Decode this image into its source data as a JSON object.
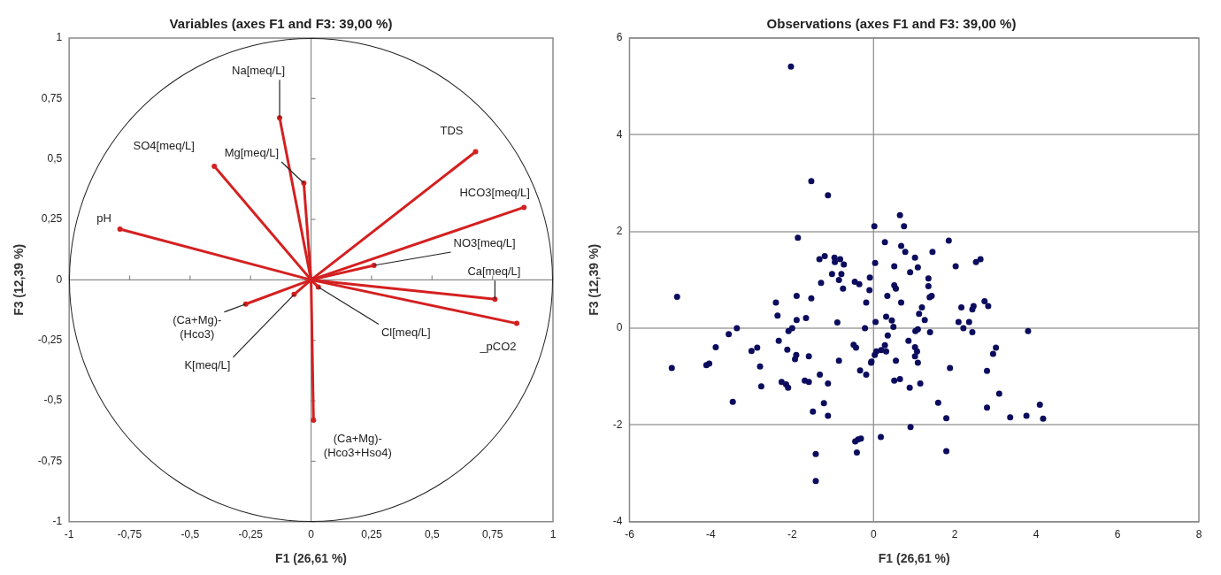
{
  "chart_data": [
    {
      "type": "line",
      "title": "Variables (axes F1 and F3: 39,00 %)",
      "xlabel": "F1 (26,61 %)",
      "ylabel": "F3 (12,39 %)",
      "marker": "circle",
      "xlim": [
        -1,
        1
      ],
      "ylim": [
        -1,
        1
      ],
      "xticks": [
        -1,
        {
          "value": -0.75,
          "label": "-0,75"
        },
        {
          "value": -0.5,
          "label": "-0,5"
        },
        {
          "value": -0.25,
          "label": "-0,25"
        },
        0,
        {
          "value": 0.25,
          "label": "0,25"
        },
        {
          "value": 0.5,
          "label": "0,5"
        },
        {
          "value": 0.75,
          "label": "0,75"
        },
        1
      ],
      "yticks": [
        -1,
        {
          "value": -0.75,
          "label": "-0,75"
        },
        {
          "value": -0.5,
          "label": "-0,5"
        },
        {
          "value": -0.25,
          "label": "-0,25"
        },
        0,
        {
          "value": 0.25,
          "label": "0,25"
        },
        {
          "value": 0.5,
          "label": "0,5"
        },
        {
          "value": 0.75,
          "label": "0,75"
        },
        1
      ],
      "ref_lines": [
        {
          "axis": "x",
          "value": 0
        },
        {
          "axis": "y",
          "value": 0
        }
      ],
      "series": [
        {
          "name": "pH",
          "type": "line",
          "color": "#d42020",
          "x": [
            0,
            -0.79
          ],
          "values": [
            0,
            0.21
          ]
        },
        {
          "name": "SO4[meq/L]",
          "type": "line",
          "color": "#d42020",
          "x": [
            0,
            -0.4
          ],
          "values": [
            0,
            0.47
          ]
        },
        {
          "name": "Na[meq/L]",
          "type": "line",
          "color": "#d42020",
          "x": [
            0,
            -0.13
          ],
          "values": [
            0,
            0.67
          ]
        },
        {
          "name": "Mg[meq/L]",
          "type": "line",
          "color": "#d42020",
          "x": [
            0,
            -0.03
          ],
          "values": [
            0,
            0.4
          ]
        },
        {
          "name": "TDS",
          "type": "line",
          "color": "#d42020",
          "x": [
            0,
            0.68
          ],
          "values": [
            0,
            0.53
          ]
        },
        {
          "name": "HCO3[meq/L]",
          "type": "line",
          "color": "#d42020",
          "x": [
            0,
            0.88
          ],
          "values": [
            0,
            0.3
          ]
        },
        {
          "name": "NO3[meq/L]",
          "type": "line",
          "color": "#d42020",
          "x": [
            0,
            0.26
          ],
          "values": [
            0,
            0.06
          ]
        },
        {
          "name": "Ca[meq/L]",
          "type": "line",
          "color": "#d42020",
          "x": [
            0,
            0.76
          ],
          "values": [
            0,
            -0.08
          ]
        },
        {
          "name": "_pCO2",
          "type": "line",
          "color": "#d42020",
          "x": [
            0,
            0.85
          ],
          "values": [
            0,
            -0.18
          ]
        },
        {
          "name": "Cl[meq/L]",
          "color": "#d42020",
          "x": [
            0,
            0.03
          ],
          "values": [
            0,
            -0.03
          ]
        },
        {
          "name": "(Ca+Mg)-(Hco3)",
          "type": "line",
          "color": "#d42020",
          "x": [
            0,
            -0.27
          ],
          "values": [
            0,
            -0.1
          ]
        },
        {
          "name": "K[meq/L]",
          "type": "line",
          "color": "#d42020",
          "x": [
            0,
            -0.07
          ],
          "values": [
            0,
            -0.06
          ]
        },
        {
          "name": "(Ca+Mg)-(Hco3+Hso4)",
          "type": "line",
          "color": "#d42020",
          "x": [
            0,
            0.01
          ],
          "values": [
            0,
            -0.58
          ]
        }
      ]
    },
    {
      "type": "scatter",
      "title": "Observations (axes F1 and F3: 39,00 %)",
      "xlabel": "F1 (26,61 %)",
      "ylabel": "F3 (12,39 %)",
      "marker": "circle",
      "color": "#0c0c5e",
      "grid": "y",
      "xlim": [
        -6,
        8
      ],
      "ylim": [
        -4,
        6
      ],
      "xticks": [
        -6,
        -4,
        -2,
        0,
        2,
        4,
        6,
        8
      ],
      "yticks": [
        -4,
        -2,
        0,
        2,
        4,
        6
      ],
      "ref_lines": [
        {
          "axis": "x",
          "value": 0
        }
      ],
      "x": [
        -2.03,
        -1.53,
        -1.12,
        -1.86,
        0.02,
        0.65,
        0.75,
        0.28,
        0.68,
        0.78,
        -1.33,
        -1.2,
        -0.96,
        -0.95,
        -0.82,
        -0.73,
        -1.02,
        -0.79,
        -0.85,
        -1.29,
        -0.46,
        -0.35,
        -0.75,
        0.04,
        -0.09,
        -0.1,
        0.51,
        0.9,
        0.51,
        0.55,
        0.34,
        0.68,
        -4.83,
        -2.4,
        -1.89,
        -1.53,
        -0.18,
        1.85,
        1.45,
        1.02,
        1.09,
        2.02,
        2.63,
        2.52,
        1.35,
        1.35,
        1.43,
        1.38,
        1.19,
        2.16,
        2.46,
        2.73,
        2.82,
        1.12,
        1.26,
        0.31,
        0.45,
        0.49,
        0.05,
        -0.21,
        0.35,
        0.28,
        0.19,
        0.31,
        0.07,
        0.03,
        -0.05,
        0.55,
        -0.33,
        -0.18,
        0.51,
        0.65,
        0.89,
        1.15,
        0.86,
        1.02,
        1.07,
        1.02,
        1.09,
        1.03,
        1.09,
        1.39,
        2.09,
        2.21,
        2.35,
        2.43,
        2.43,
        3.8,
        3.01,
        2.94,
        2.79,
        1.88,
        3.09,
        2.79,
        1.59,
        1.79,
        3.36,
        3.76,
        4.09,
        4.17,
        0.91,
        0.18,
        1.79,
        -2.36,
        -1.89,
        -1.66,
        -0.89,
        -2.09,
        -2,
        -3.36,
        -3.56,
        -3.88,
        -3,
        -2.86,
        -2.33,
        -2.12,
        -1.9,
        -1.93,
        -1.59,
        -0.85,
        -0.49,
        -0.43,
        -0.06,
        -4.96,
        -4.11,
        -4.04,
        -2.79,
        -2.76,
        -3.46,
        -2.26,
        -2.15,
        -2.1,
        -1.69,
        -1.59,
        -1.32,
        -1.12,
        -1.22,
        -1.49,
        -1.12,
        -0.45,
        -0.38,
        -0.31,
        -0.41,
        -1.42,
        -1.42
      ],
      "values": [
        5.41,
        3.04,
        2.75,
        1.87,
        2.11,
        2.34,
        2.11,
        1.78,
        1.7,
        1.58,
        1.43,
        1.49,
        1.46,
        1.37,
        1.43,
        1.32,
        1.12,
        1.12,
        1,
        0.94,
        0.96,
        0.91,
        0.82,
        1.35,
        1.05,
        0.79,
        1.28,
        1.16,
        0.89,
        0.82,
        0.67,
        0.53,
        0.65,
        0.53,
        0.67,
        0.62,
        0.53,
        1.81,
        1.58,
        1.46,
        1.26,
        1.28,
        1.43,
        1.37,
        1.03,
        0.87,
        0.67,
        0.64,
        0.43,
        0.43,
        0.46,
        0.56,
        0.46,
        0.3,
        0.17,
        0.24,
        0.16,
        0.03,
        0.13,
        0,
        -0.15,
        -0.35,
        -0.45,
        -0.48,
        -0.48,
        -0.55,
        -0.69,
        -0.67,
        -0.87,
        -0.96,
        -1.08,
        -1.05,
        -1.23,
        -1.14,
        -0.26,
        -0.39,
        -0.48,
        -0.58,
        -0.71,
        -0.06,
        -0.02,
        -0.08,
        0.13,
        0,
        0.13,
        -0.08,
        0.39,
        -0.06,
        -0.4,
        -0.53,
        -0.88,
        -0.82,
        -1.35,
        -1.64,
        -1.54,
        -1.86,
        -1.84,
        -1.81,
        -1.58,
        -1.87,
        -2.04,
        -2.25,
        -2.54,
        0.26,
        0.17,
        0.21,
        0.12,
        -0.06,
        0,
        0,
        -0.12,
        -0.39,
        -0.47,
        -0.4,
        -0.26,
        -0.44,
        -0.55,
        -0.64,
        -0.58,
        -0.67,
        -0.34,
        -0.4,
        -0.71,
        -0.82,
        -0.76,
        -0.73,
        -0.79,
        -1.2,
        -1.52,
        -1.11,
        -1.16,
        -1.23,
        -1.08,
        -1.11,
        -0.96,
        -1.14,
        -1.55,
        -1.72,
        -1.81,
        -2.34,
        -2.3,
        -2.28,
        -2.57,
        -2.6,
        -3.16
      ]
    }
  ]
}
